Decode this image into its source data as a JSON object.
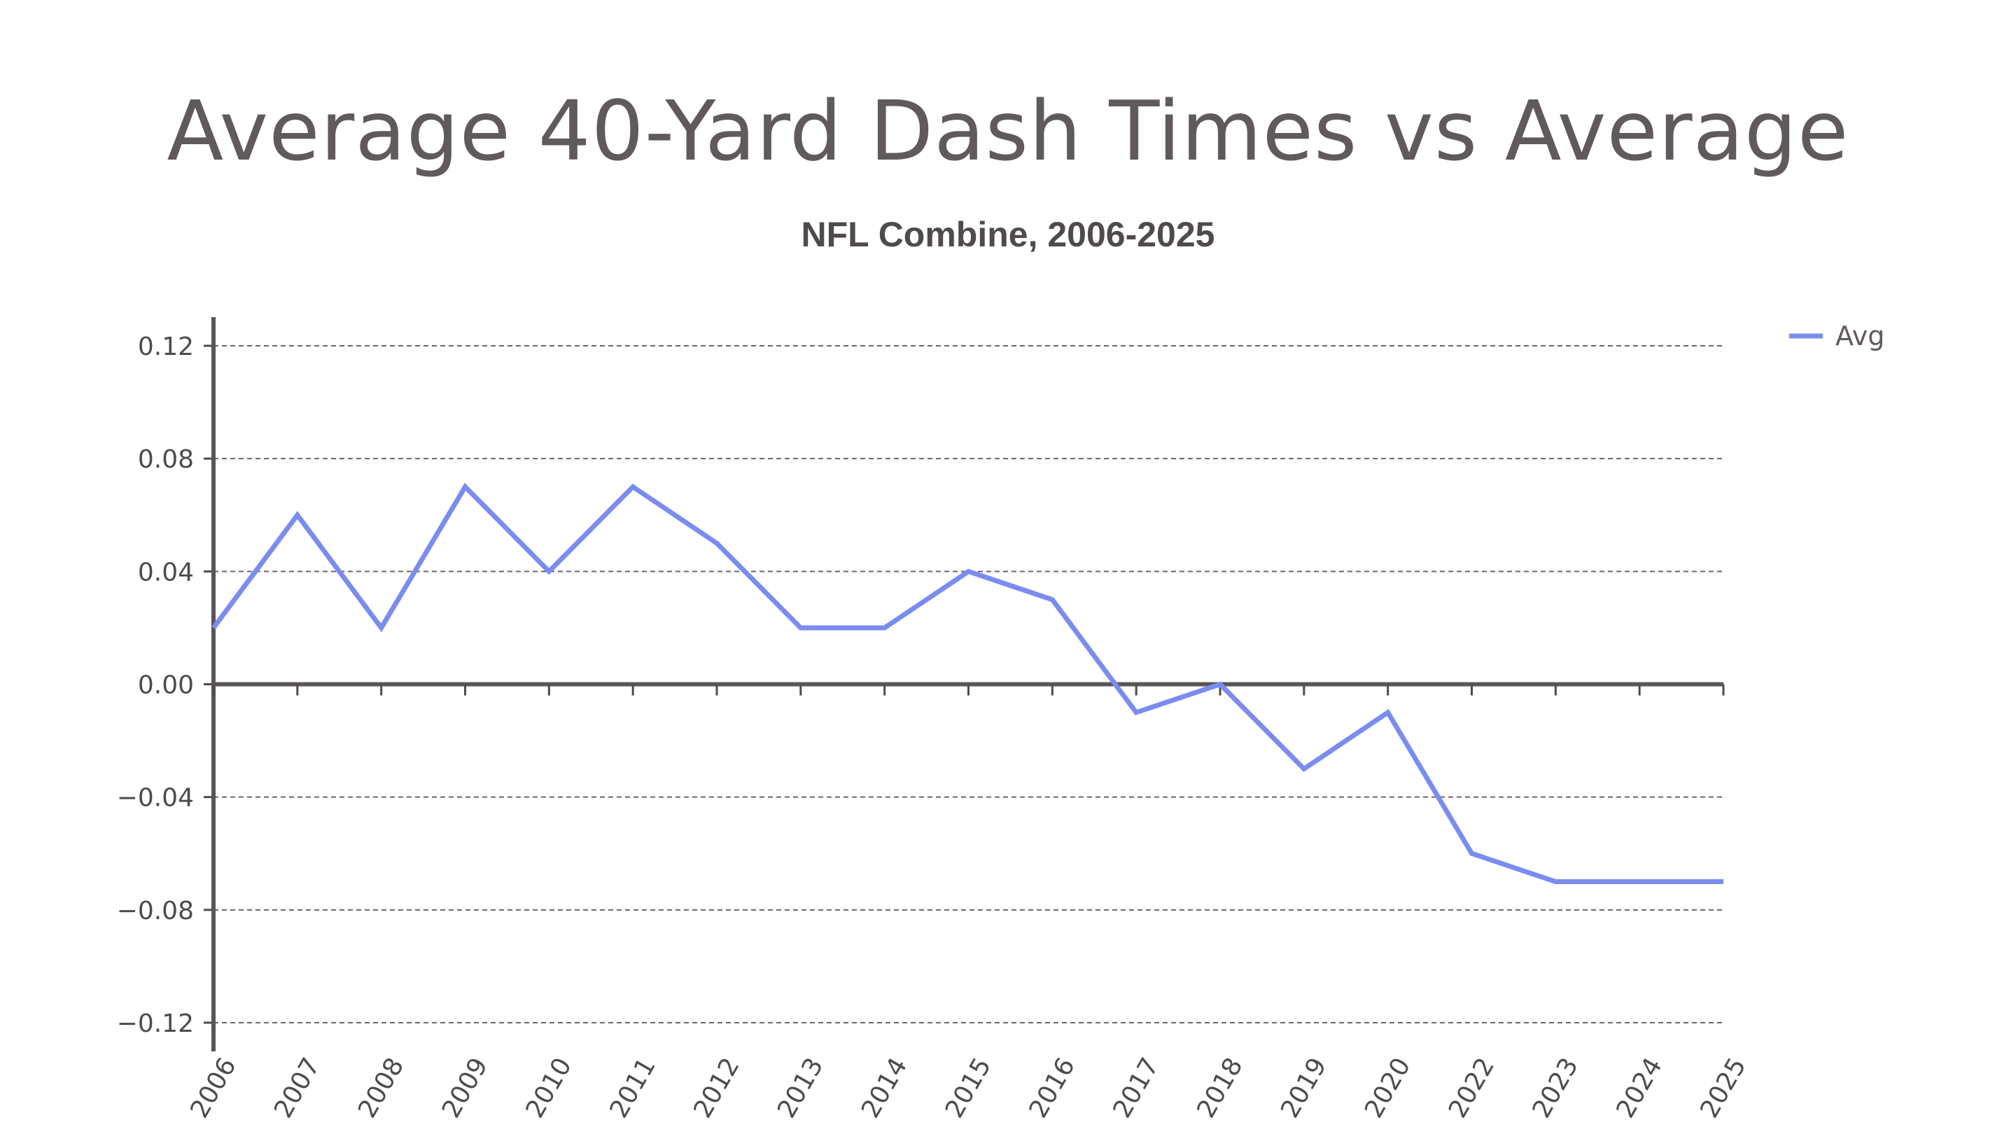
{
  "chart_data": {
    "type": "line",
    "title": "Average 40-Yard Dash Times vs Average",
    "subtitle": "NFL Combine, 2006-2025",
    "xlabel": "",
    "ylabel": "",
    "categories": [
      "2006",
      "2007",
      "2008",
      "2009",
      "2010",
      "2011",
      "2012",
      "2013",
      "2014",
      "2015",
      "2016",
      "2017",
      "2018",
      "2019",
      "2020",
      "2022",
      "2023",
      "2024",
      "2025"
    ],
    "series": [
      {
        "name": "Avg",
        "color": "#7b8cf0",
        "values": [
          0.02,
          0.06,
          0.02,
          0.07,
          0.04,
          0.07,
          0.05,
          0.02,
          0.02,
          0.04,
          0.03,
          -0.01,
          0.0,
          -0.03,
          -0.01,
          -0.06,
          -0.07,
          -0.07,
          -0.07
        ]
      }
    ],
    "ylim": [
      -0.13,
      0.13
    ],
    "yticks": [
      0.12,
      0.08,
      0.04,
      0.0,
      -0.04,
      -0.08,
      -0.12
    ],
    "ytick_labels": [
      "0.12",
      "0.08",
      "0.04",
      "0.00",
      "−0.04",
      "−0.08",
      "−0.12"
    ],
    "grid": true,
    "legend_position": "top-right"
  }
}
